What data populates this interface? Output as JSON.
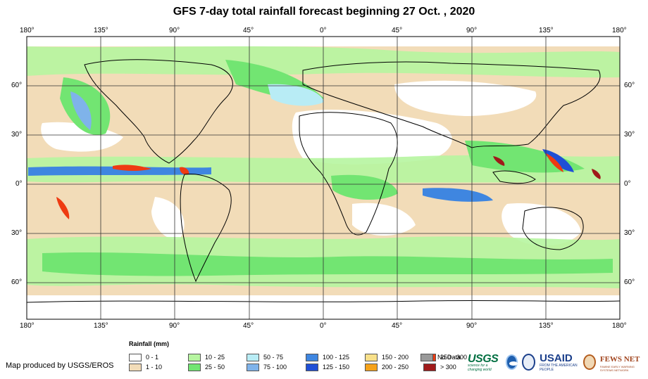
{
  "title": "GFS 7-day total rainfall forecast beginning 27 Oct. , 2020",
  "longitude_labels": [
    "180°",
    "135°",
    "90°",
    "45°",
    "0°",
    "45°",
    "90°",
    "135°",
    "180°"
  ],
  "latitude_labels": [
    "60°",
    "30°",
    "0°",
    "30°",
    "60°"
  ],
  "legend": {
    "title": "Rainfall (mm)",
    "items": [
      {
        "label": "0 - 1",
        "color": "#ffffff"
      },
      {
        "label": "1 - 10",
        "color": "#f2dcb8"
      },
      {
        "label": "10 - 25",
        "color": "#b6f5a0"
      },
      {
        "label": "25 - 50",
        "color": "#72e572"
      },
      {
        "label": "50 - 75",
        "color": "#b8ecf5"
      },
      {
        "label": "75 - 100",
        "color": "#7fb3ea"
      },
      {
        "label": "100 - 125",
        "color": "#3f86e0"
      },
      {
        "label": "125 - 150",
        "color": "#1f4fd6"
      },
      {
        "label": "150 - 200",
        "color": "#f8e08a"
      },
      {
        "label": "200 - 250",
        "color": "#f5a21a"
      },
      {
        "label": "250 - 300",
        "color": "#ee3b12"
      },
      {
        "label": "> 300",
        "color": "#a01a1a"
      },
      {
        "label": "No Data",
        "color": "#999999"
      }
    ]
  },
  "credit": "Map produced by USGS/EROS",
  "logos": {
    "usgs": "USGS",
    "usgs_tagline": "science for a changing world",
    "usaid": "USAID",
    "usaid_tagline": "FROM THE AMERICAN PEOPLE",
    "fews": "FEWS NET",
    "fews_tagline": "FAMINE EARLY WARNING SYSTEMS NETWORK"
  },
  "colors": {
    "ocean_light": "#f2dcb8",
    "land_outline": "#000000",
    "grid": "#333333"
  }
}
